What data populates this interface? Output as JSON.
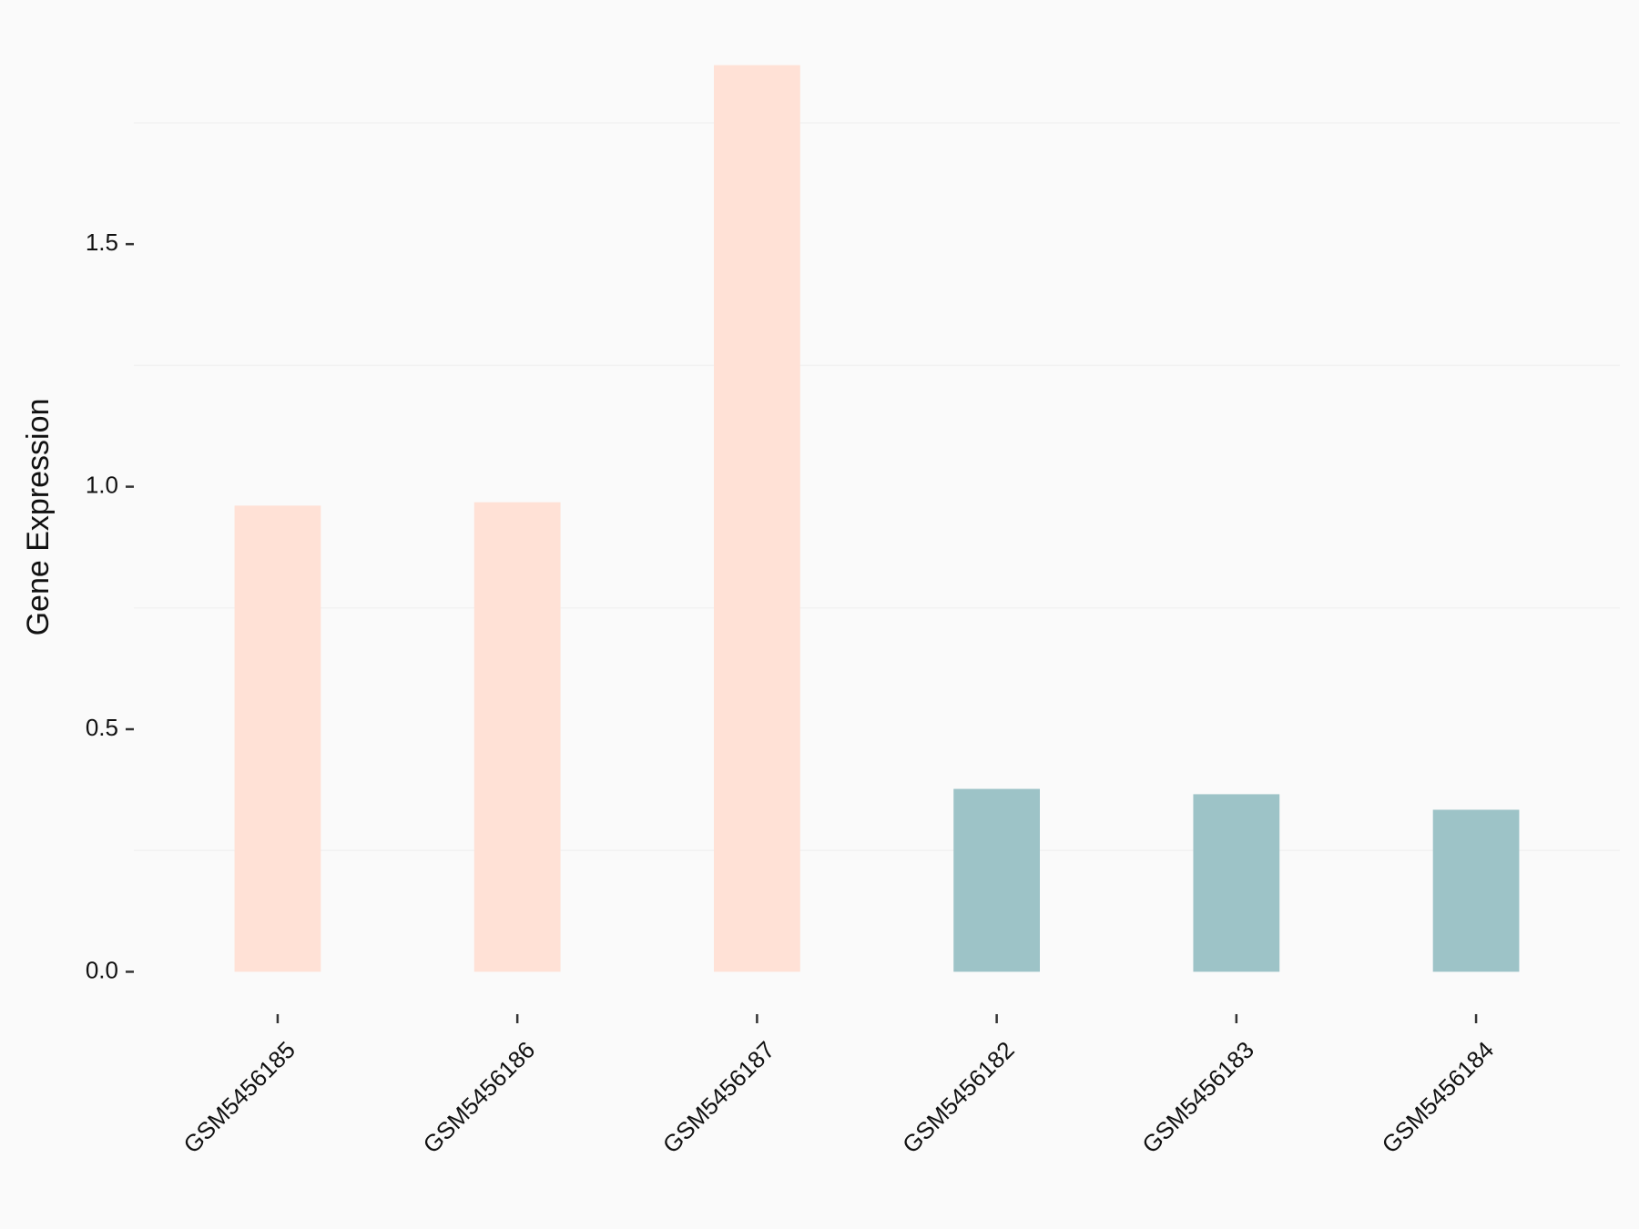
{
  "chart_data": {
    "type": "bar",
    "y_label": "Gene Expression",
    "categories": [
      "GSM5456185",
      "GSM5456186",
      "GSM5456187",
      "GSM5456182",
      "GSM5456183",
      "GSM5456184"
    ],
    "values": [
      0.961,
      0.968,
      1.869,
      0.377,
      0.366,
      0.334
    ],
    "colors": [
      "#FFE1D6",
      "#FFE1D6",
      "#FFE1D6",
      "#9DC3C7",
      "#9DC3C7",
      "#9DC3C7"
    ],
    "ylim": [
      -0.093,
      1.962
    ],
    "yticks": [
      {
        "value": 0,
        "label": "0.0"
      },
      0.5,
      {
        "value": 1,
        "label": "1.0"
      },
      1.5
    ],
    "minor_grid": [
      0.25,
      0.75,
      1.25,
      1.75
    ]
  }
}
